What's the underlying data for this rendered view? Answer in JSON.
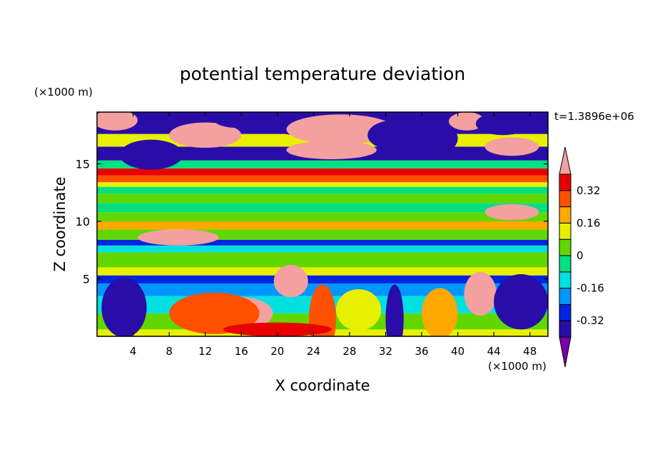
{
  "chart_data": {
    "type": "heatmap",
    "title": "potential temperature deviation",
    "xlabel": "X coordinate",
    "ylabel": "Z coordinate",
    "x_unit": "(×1000 m)",
    "y_unit": "(×1000 m)",
    "time_label": "t=1.3896e+06",
    "xlim": [
      0,
      50
    ],
    "ylim": [
      0,
      19.5
    ],
    "x_ticks": [
      4,
      8,
      12,
      16,
      20,
      24,
      28,
      32,
      36,
      40,
      44,
      48
    ],
    "y_ticks": [
      5,
      10,
      15
    ],
    "colorbar": {
      "levels": [
        -0.4,
        -0.32,
        -0.24,
        -0.16,
        -0.08,
        0,
        0.08,
        0.16,
        0.24,
        0.32,
        0.4
      ],
      "colors": [
        "#7b00a8",
        "#2a0ca8",
        "#0024e0",
        "#0096ff",
        "#00e0e0",
        "#00e080",
        "#60d800",
        "#e8f000",
        "#ffa800",
        "#ff5000",
        "#e80000",
        "#f4a0a0"
      ],
      "tick_labels": [
        "0.32",
        "0.16",
        "0",
        "-0.16",
        "-0.32"
      ],
      "tick_values": [
        0.32,
        0.16,
        0,
        -0.16,
        -0.32
      ]
    },
    "bands": [
      {
        "z": [
          0,
          0.6
        ],
        "value": 0.1
      },
      {
        "z": [
          0.6,
          2.0
        ],
        "value": 0.0
      },
      {
        "z": [
          2.0,
          3.5
        ],
        "value": -0.12
      },
      {
        "z": [
          3.5,
          4.6
        ],
        "value": -0.22
      },
      {
        "z": [
          4.6,
          5.3
        ],
        "value": -0.3
      },
      {
        "z": [
          5.3,
          6.0
        ],
        "value": 0.12
      },
      {
        "z": [
          6.0,
          7.3
        ],
        "value": 0.04
      },
      {
        "z": [
          7.3,
          7.9
        ],
        "value": -0.1
      },
      {
        "z": [
          7.9,
          8.4
        ],
        "value": -0.28
      },
      {
        "z": [
          8.4,
          9.3
        ],
        "value": 0.02
      },
      {
        "z": [
          9.3,
          10.0
        ],
        "value": 0.2
      },
      {
        "z": [
          10.0,
          10.8
        ],
        "value": 0.06
      },
      {
        "z": [
          10.8,
          11.6
        ],
        "value": -0.06
      },
      {
        "z": [
          11.6,
          12.4
        ],
        "value": 0.04
      },
      {
        "z": [
          12.4,
          13.0
        ],
        "value": -0.04
      },
      {
        "z": [
          13.0,
          13.4
        ],
        "value": 0.14
      },
      {
        "z": [
          13.4,
          14.0
        ],
        "value": 0.24
      },
      {
        "z": [
          14.0,
          14.6
        ],
        "value": 0.34
      },
      {
        "z": [
          14.6,
          15.3
        ],
        "value": -0.08
      },
      {
        "z": [
          15.3,
          16.5
        ],
        "value": -0.36
      },
      {
        "z": [
          16.5,
          17.6
        ],
        "value": 0.12
      },
      {
        "z": [
          17.6,
          19.5
        ],
        "value": -0.4
      }
    ],
    "blobs": [
      {
        "x": 2,
        "z": 18.8,
        "rx": 2.5,
        "rz": 0.9,
        "value": 0.42
      },
      {
        "x": 6,
        "z": 15.8,
        "rx": 3.5,
        "rz": 1.3,
        "value": -0.4
      },
      {
        "x": 12,
        "z": 17.5,
        "rx": 4,
        "rz": 1.1,
        "value": 0.42
      },
      {
        "x": 16,
        "z": 18.8,
        "rx": 3,
        "rz": 0.7,
        "value": -0.4
      },
      {
        "x": 22,
        "z": 18.5,
        "rx": 2.5,
        "rz": 1.0,
        "value": -0.4
      },
      {
        "x": 27,
        "z": 18.0,
        "rx": 6,
        "rz": 1.3,
        "value": 0.42
      },
      {
        "x": 26,
        "z": 16.2,
        "rx": 5,
        "rz": 0.8,
        "value": 0.42
      },
      {
        "x": 33,
        "z": 17.5,
        "rx": 3,
        "rz": 1.3,
        "value": -0.4
      },
      {
        "x": 37,
        "z": 17.2,
        "rx": 3,
        "rz": 1.5,
        "value": -0.4
      },
      {
        "x": 41,
        "z": 18.7,
        "rx": 2,
        "rz": 0.8,
        "value": 0.42
      },
      {
        "x": 45,
        "z": 18.5,
        "rx": 3,
        "rz": 1.0,
        "value": -0.4
      },
      {
        "x": 46,
        "z": 16.5,
        "rx": 3,
        "rz": 0.8,
        "value": 0.42
      },
      {
        "x": 9,
        "z": 8.6,
        "rx": 4.5,
        "rz": 0.7,
        "value": 0.42
      },
      {
        "x": 46,
        "z": 10.8,
        "rx": 3,
        "rz": 0.7,
        "value": 0.42
      },
      {
        "x": 21.5,
        "z": 4.8,
        "rx": 1.9,
        "rz": 1.4,
        "value": 0.42
      },
      {
        "x": 42.5,
        "z": 3.7,
        "rx": 1.8,
        "rz": 1.9,
        "value": 0.42
      },
      {
        "x": 16,
        "z": 2.0,
        "rx": 3.5,
        "rz": 1.4,
        "value": 0.42
      },
      {
        "x": 13,
        "z": 2.0,
        "rx": 5,
        "rz": 1.8,
        "value": 0.3
      },
      {
        "x": 3,
        "z": 2.5,
        "rx": 2.5,
        "rz": 2.6,
        "value": -0.4
      },
      {
        "x": 47,
        "z": 3.0,
        "rx": 3,
        "rz": 2.4,
        "value": -0.4
      },
      {
        "x": 33,
        "z": 1.5,
        "rx": 1.0,
        "rz": 3.0,
        "value": -0.36
      },
      {
        "x": 38,
        "z": 2.0,
        "rx": 2,
        "rz": 2.2,
        "value": 0.2
      },
      {
        "x": 25,
        "z": 1.5,
        "rx": 1.5,
        "rz": 3.0,
        "value": 0.3
      },
      {
        "x": 29,
        "z": 2.3,
        "rx": 2.5,
        "rz": 1.8,
        "value": 0.14
      },
      {
        "x": 20,
        "z": 0.6,
        "rx": 6,
        "rz": 0.6,
        "value": 0.38
      }
    ]
  }
}
